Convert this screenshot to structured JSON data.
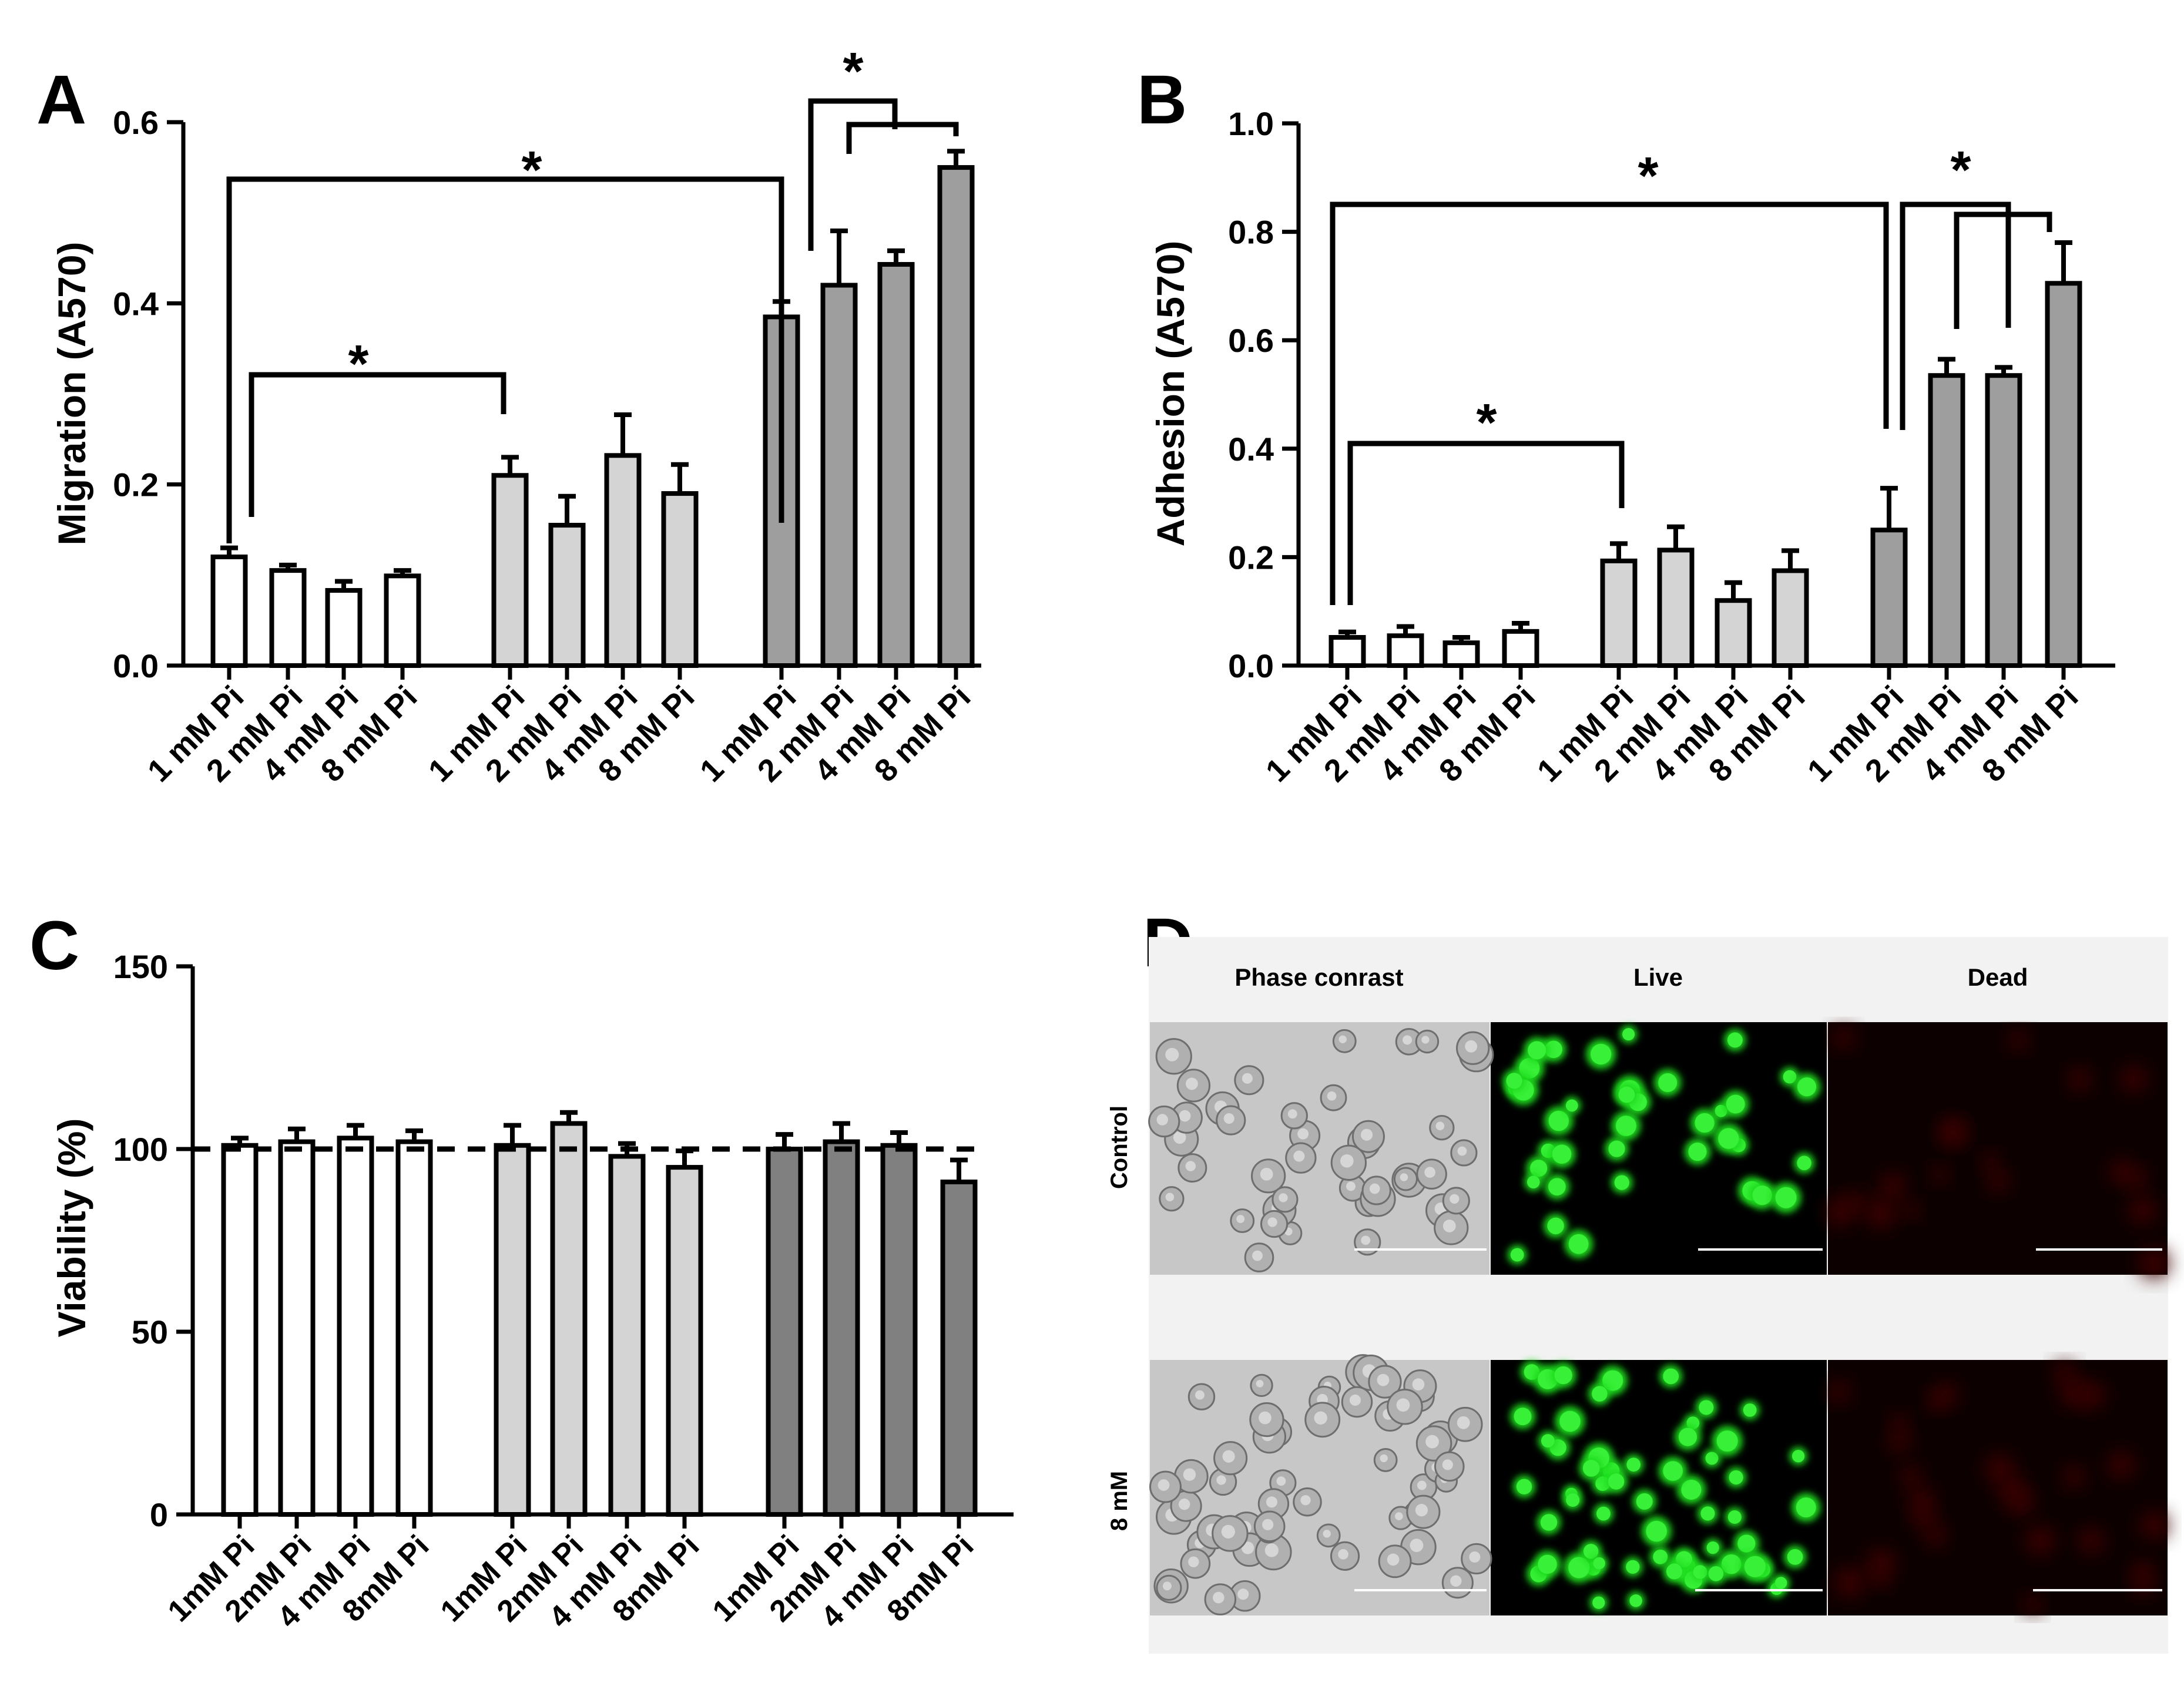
{
  "panel_letters": [
    "A",
    "B",
    "C",
    "D"
  ],
  "chart_data": [
    {
      "type": "bar",
      "panel": "A",
      "ylabel": "Migration (A570)",
      "xlabel": "",
      "ylim": [
        0,
        0.6
      ],
      "yticks": [
        "0.0",
        "0.2",
        "0.4",
        "0.6"
      ],
      "ytick_values": [
        0,
        0.2,
        0.4,
        0.6
      ],
      "categories": [
        "1 mM Pi",
        "2 mM Pi",
        "4 mM Pi",
        "8 mM Pi",
        "1 mM Pi",
        "2 mM Pi",
        "4 mM Pi",
        "8 mM Pi",
        "1 mM Pi",
        "2 mM Pi",
        "4 mM Pi",
        "8 mM Pi"
      ],
      "values": [
        0.12,
        0.105,
        0.083,
        0.099,
        0.21,
        0.155,
        0.232,
        0.19,
        0.385,
        0.42,
        0.443,
        0.55
      ],
      "errors": [
        0.01,
        0.006,
        0.01,
        0.006,
        0.02,
        0.032,
        0.045,
        0.032,
        0.017,
        0.06,
        0.015,
        0.018
      ],
      "colors": [
        "#ffffff",
        "#ffffff",
        "#ffffff",
        "#ffffff",
        "#d4d4d4",
        "#d4d4d4",
        "#d4d4d4",
        "#d4d4d4",
        "#9e9e9e",
        "#9e9e9e",
        "#9e9e9e",
        "#9e9e9e"
      ],
      "significance": [
        {
          "from": 0,
          "to": 8,
          "label": "*"
        },
        {
          "from": 0,
          "to": 4,
          "label": "*"
        },
        {
          "from": 9,
          "to": 11,
          "label": "*"
        },
        {
          "from": 8,
          "to": 11,
          "label": "*"
        }
      ],
      "grid": false
    },
    {
      "type": "bar",
      "panel": "B",
      "ylabel": "Adhesion (A570)",
      "xlabel": "",
      "ylim": [
        0,
        1.0
      ],
      "yticks": [
        "0.0",
        "0.2",
        "0.4",
        "0.6",
        "0.8",
        "1.0"
      ],
      "ytick_values": [
        0,
        0.2,
        0.4,
        0.6,
        0.8,
        1.0
      ],
      "categories": [
        "1 mM Pi",
        "2 mM Pi",
        "4 mM Pi",
        "8 mM Pi",
        "1 mM Pi",
        "2 mM Pi",
        "4 mM Pi",
        "8 mM Pi",
        "1 mM Pi",
        "2 mM Pi",
        "4 mM Pi",
        "8 mM Pi"
      ],
      "values": [
        0.052,
        0.055,
        0.042,
        0.063,
        0.193,
        0.213,
        0.12,
        0.175,
        0.25,
        0.535,
        0.535,
        0.705
      ],
      "errors": [
        0.01,
        0.017,
        0.01,
        0.015,
        0.032,
        0.043,
        0.033,
        0.037,
        0.077,
        0.03,
        0.015,
        0.075
      ],
      "colors": [
        "#ffffff",
        "#ffffff",
        "#ffffff",
        "#ffffff",
        "#d4d4d4",
        "#d4d4d4",
        "#d4d4d4",
        "#d4d4d4",
        "#9e9e9e",
        "#9e9e9e",
        "#9e9e9e",
        "#9e9e9e"
      ],
      "significance": [
        {
          "from": 0,
          "to": 8,
          "label": "*"
        },
        {
          "from": 0,
          "to": 4,
          "label": "*"
        },
        {
          "from": 9,
          "to": 11,
          "label": "*"
        },
        {
          "from": 8,
          "to": 10,
          "label": "*"
        }
      ],
      "grid": false
    },
    {
      "type": "bar",
      "panel": "C",
      "ylabel": "Viability (%)",
      "xlabel": "",
      "ylim": [
        0,
        150
      ],
      "yticks": [
        "0",
        "50",
        "100",
        "150"
      ],
      "ytick_values": [
        0,
        50,
        100,
        150
      ],
      "categories": [
        "1mM Pi",
        "2mM Pi",
        "4 mM Pi",
        "8mM Pi",
        "1mM Pi",
        "2mM Pi",
        "4 mM Pi",
        "8mM Pi",
        "1mM Pi",
        "2mM Pi",
        "4 mM Pi",
        "8mM Pi"
      ],
      "values": [
        101,
        102,
        103,
        102,
        101,
        107,
        98,
        95,
        100,
        102,
        101,
        91
      ],
      "errors": [
        2,
        3.5,
        3.5,
        3,
        5.5,
        3,
        3.5,
        4.5,
        4,
        5,
        3.5,
        6
      ],
      "colors": [
        "#ffffff",
        "#ffffff",
        "#ffffff",
        "#ffffff",
        "#d4d4d4",
        "#d4d4d4",
        "#d4d4d4",
        "#d4d4d4",
        "#808080",
        "#808080",
        "#808080",
        "#808080"
      ],
      "reference_line": 100,
      "grid": false
    }
  ],
  "microscopy": {
    "columns": [
      "Phase conrast",
      "Live",
      "Dead"
    ],
    "rows": [
      "Control",
      "8 mM"
    ]
  }
}
